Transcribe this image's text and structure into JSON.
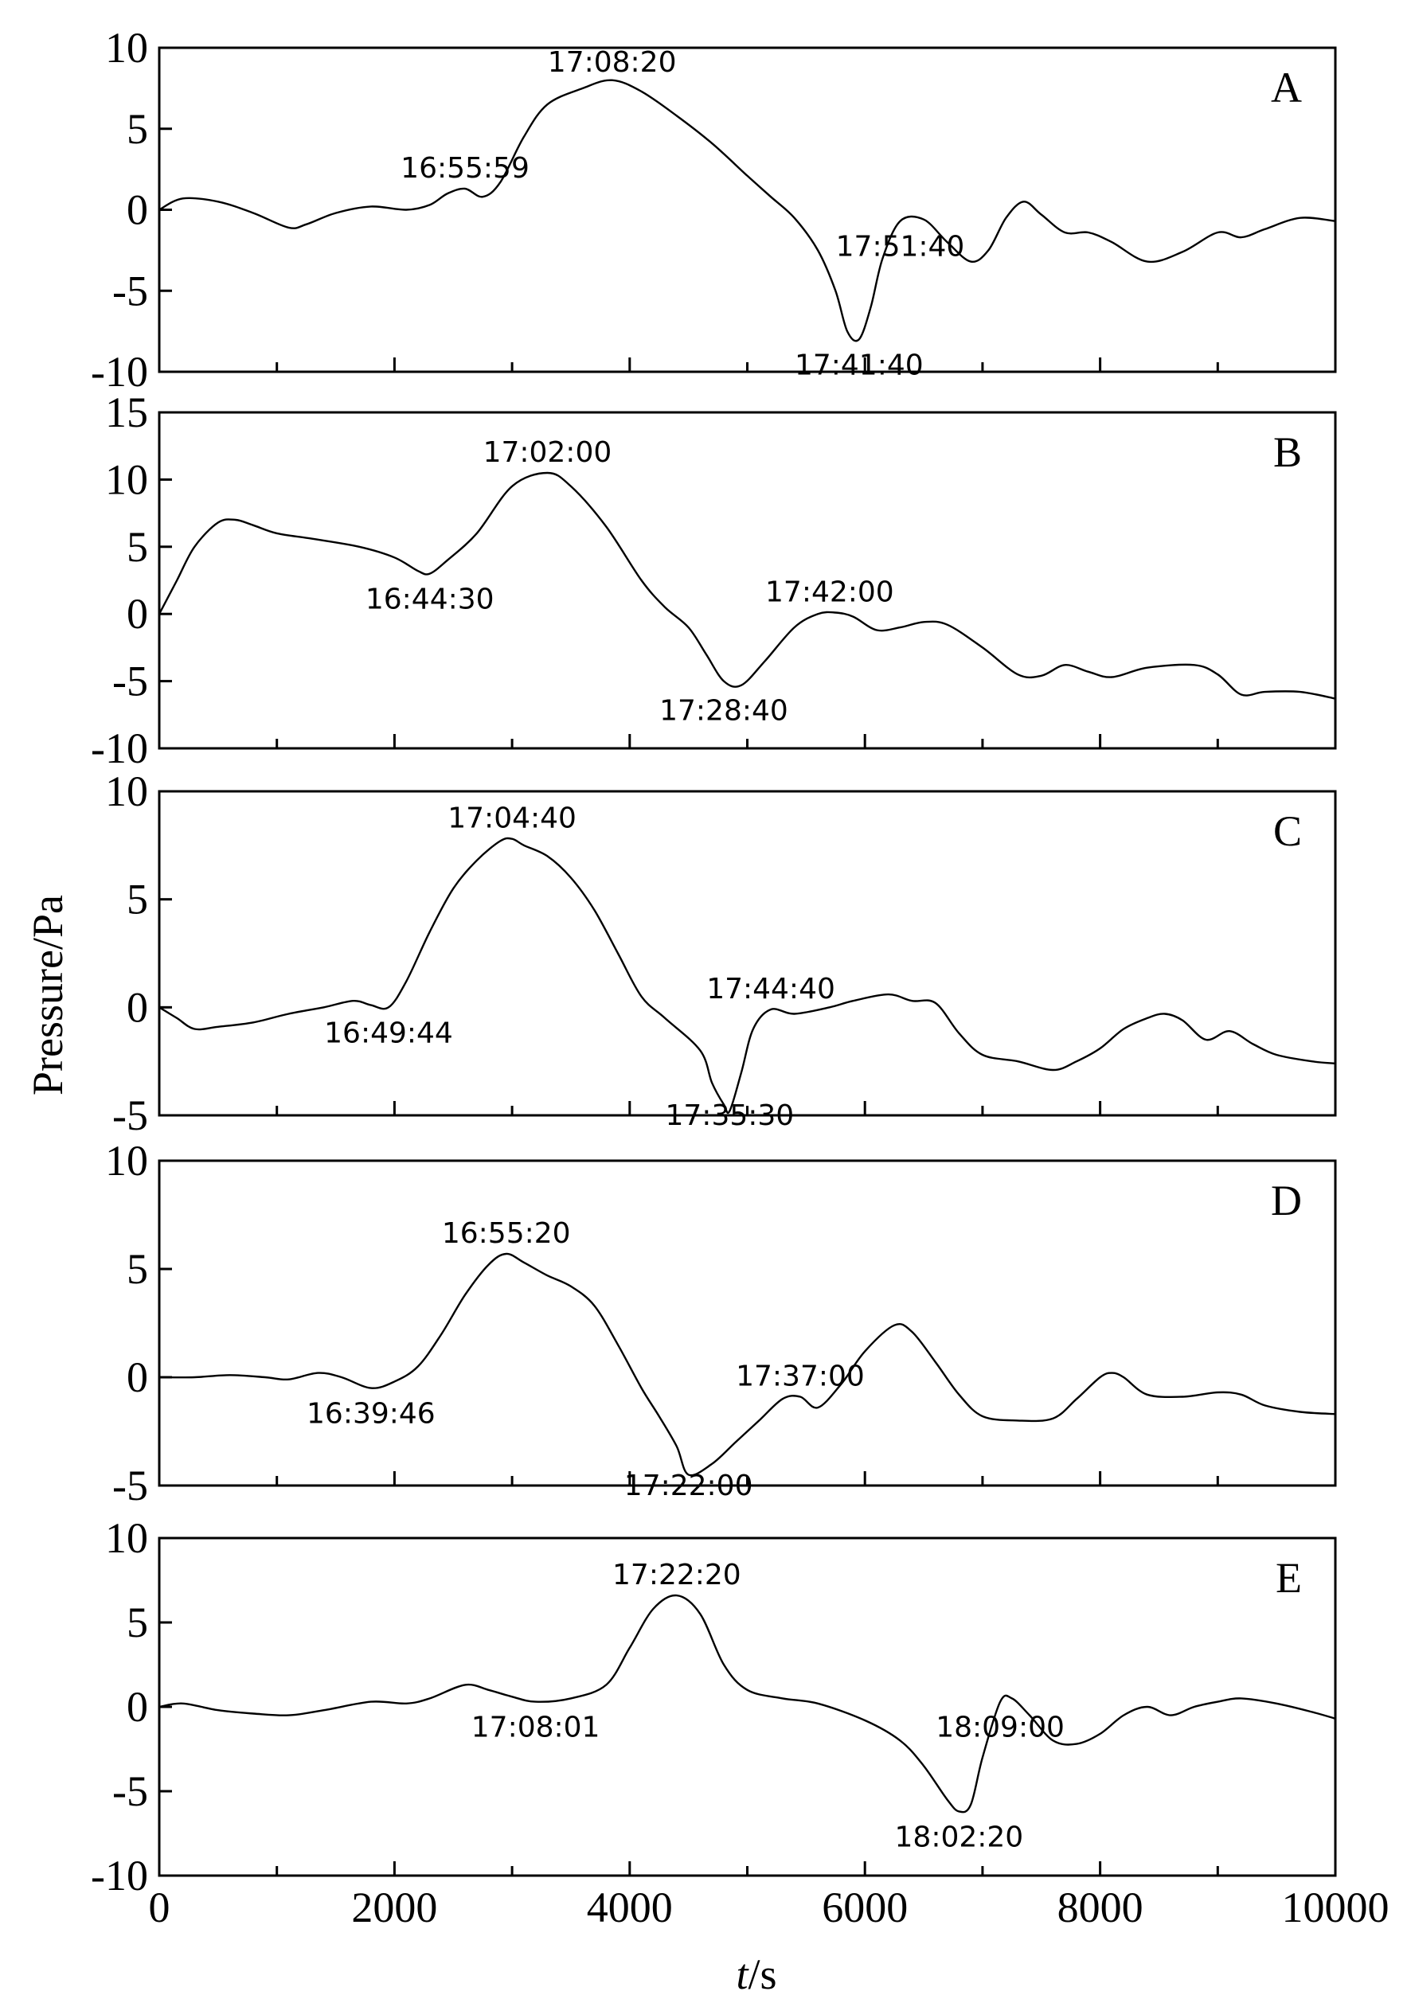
{
  "chart_data": {
    "type": "line",
    "layout": "stacked-panels",
    "xlabel_italic": "t",
    "xlabel_unit": "/s",
    "ylabel": "Pressure/Pa",
    "xlim": [
      0,
      10000
    ],
    "xticks": [
      0,
      2000,
      4000,
      6000,
      8000,
      10000
    ],
    "xtick_labels": [
      "0",
      "2000",
      "4000",
      "6000",
      "8000",
      "10000"
    ],
    "panels": [
      {
        "label": "A",
        "ylim": [
          -10,
          10
        ],
        "yticks": [
          -10,
          -5,
          0,
          5,
          10
        ],
        "ytick_labels": [
          "-10",
          "-5",
          "0",
          "5",
          "10"
        ],
        "x": [
          0,
          200,
          500,
          800,
          1100,
          1250,
          1500,
          1800,
          2100,
          2300,
          2450,
          2600,
          2750,
          2900,
          3100,
          3300,
          3600,
          3850,
          4100,
          4400,
          4700,
          5000,
          5200,
          5400,
          5600,
          5750,
          5850,
          5950,
          6050,
          6150,
          6300,
          6500,
          6700,
          6900,
          7050,
          7200,
          7350,
          7500,
          7700,
          7900,
          8100,
          8400,
          8700,
          9000,
          9200,
          9400,
          9700,
          10000
        ],
        "values": [
          0.0,
          0.7,
          0.5,
          -0.2,
          -1.1,
          -0.9,
          -0.2,
          0.2,
          0.0,
          0.3,
          1.0,
          1.3,
          0.8,
          1.7,
          4.5,
          6.5,
          7.5,
          8.0,
          7.3,
          5.8,
          4.1,
          2.1,
          0.8,
          -0.5,
          -2.5,
          -5.0,
          -7.5,
          -8.0,
          -6.0,
          -3.0,
          -0.7,
          -0.6,
          -2.0,
          -3.2,
          -2.5,
          -0.5,
          0.5,
          -0.3,
          -1.4,
          -1.4,
          -2.0,
          -3.2,
          -2.6,
          -1.4,
          -1.7,
          -1.2,
          -0.5,
          -0.7
        ],
        "annotations": [
          {
            "text": "17:08:20",
            "x": 3850,
            "y": 8.0
          },
          {
            "text": "16:55:59",
            "x": 2600,
            "y": 1.3
          },
          {
            "text": "17:51:40",
            "x": 6300,
            "y": -0.7
          },
          {
            "text": "17:41:40",
            "x": 5950,
            "y": -8.0
          }
        ]
      },
      {
        "label": "B",
        "ylim": [
          -10,
          15
        ],
        "yticks": [
          -10,
          -5,
          0,
          5,
          10,
          15
        ],
        "ytick_labels": [
          "-10",
          "-5",
          "0",
          "5",
          "10",
          "15"
        ],
        "x": [
          0,
          150,
          300,
          500,
          650,
          800,
          1000,
          1300,
          1700,
          2000,
          2200,
          2300,
          2450,
          2700,
          3000,
          3300,
          3500,
          3800,
          4100,
          4300,
          4500,
          4650,
          4800,
          4950,
          5150,
          5400,
          5600,
          5750,
          5900,
          6100,
          6300,
          6500,
          6700,
          7000,
          7300,
          7500,
          7700,
          7900,
          8100,
          8400,
          8800,
          9000,
          9200,
          9400,
          9700,
          10000
        ],
        "values": [
          0.0,
          2.5,
          5.0,
          6.8,
          7.0,
          6.6,
          6.0,
          5.6,
          5.0,
          4.2,
          3.2,
          3.0,
          4.0,
          6.0,
          9.5,
          10.5,
          9.5,
          6.5,
          2.5,
          0.5,
          -1.0,
          -3.0,
          -5.0,
          -5.3,
          -3.5,
          -1.0,
          0.0,
          0.1,
          -0.2,
          -1.2,
          -1.0,
          -0.6,
          -0.8,
          -2.5,
          -4.5,
          -4.6,
          -3.8,
          -4.3,
          -4.7,
          -4.0,
          -3.8,
          -4.5,
          -6.0,
          -5.8,
          -5.8,
          -6.3
        ],
        "annotations": [
          {
            "text": "17:02:00",
            "x": 3300,
            "y": 10.5
          },
          {
            "text": "16:44:30",
            "x": 2300,
            "y": 3.0
          },
          {
            "text": "17:42:00",
            "x": 5700,
            "y": 0.1
          },
          {
            "text": "17:28:40",
            "x": 4800,
            "y": -5.3
          }
        ]
      },
      {
        "label": "C",
        "ylim": [
          -5,
          10
        ],
        "yticks": [
          -5,
          0,
          5,
          10
        ],
        "ytick_labels": [
          "-5",
          "0",
          "5",
          "10"
        ],
        "x": [
          0,
          150,
          300,
          500,
          800,
          1100,
          1400,
          1650,
          1800,
          1950,
          2100,
          2300,
          2500,
          2700,
          2900,
          3000,
          3100,
          3300,
          3500,
          3700,
          3900,
          4100,
          4300,
          4600,
          4700,
          4800,
          4850,
          4950,
          5050,
          5200,
          5400,
          5700,
          5900,
          6200,
          6400,
          6600,
          6800,
          7000,
          7300,
          7600,
          7800,
          8000,
          8200,
          8400,
          8550,
          8700,
          8900,
          9100,
          9300,
          9500,
          9800,
          10000
        ],
        "values": [
          0.0,
          -0.5,
          -1.0,
          -0.9,
          -0.7,
          -0.3,
          0.0,
          0.3,
          0.1,
          0.0,
          1.2,
          3.5,
          5.5,
          6.8,
          7.7,
          7.8,
          7.5,
          7.0,
          6.0,
          4.5,
          2.5,
          0.5,
          -0.5,
          -2.0,
          -3.5,
          -4.5,
          -4.8,
          -3.0,
          -1.0,
          -0.1,
          -0.3,
          0.0,
          0.3,
          0.6,
          0.3,
          0.2,
          -1.2,
          -2.2,
          -2.5,
          -2.9,
          -2.5,
          -1.9,
          -1.0,
          -0.5,
          -0.3,
          -0.6,
          -1.5,
          -1.1,
          -1.7,
          -2.2,
          -2.5,
          -2.6
        ],
        "annotations": [
          {
            "text": "17:04:40",
            "x": 3000,
            "y": 7.8
          },
          {
            "text": "16:49:44",
            "x": 1950,
            "y": 0.0
          },
          {
            "text": "17:44:40",
            "x": 5200,
            "y": -0.1
          },
          {
            "text": "17:35:30",
            "x": 4850,
            "y": -4.8
          }
        ]
      },
      {
        "label": "D",
        "ylim": [
          -5,
          10
        ],
        "yticks": [
          -5,
          0,
          5,
          10
        ],
        "ytick_labels": [
          "-5",
          "0",
          "5",
          "10"
        ],
        "x": [
          0,
          300,
          600,
          900,
          1100,
          1350,
          1550,
          1800,
          2000,
          2200,
          2400,
          2600,
          2800,
          2950,
          3100,
          3300,
          3500,
          3700,
          3900,
          4100,
          4250,
          4400,
          4500,
          4700,
          4900,
          5100,
          5300,
          5450,
          5600,
          5800,
          6000,
          6250,
          6400,
          6600,
          6800,
          7000,
          7300,
          7600,
          7800,
          8000,
          8100,
          8200,
          8400,
          8700,
          9000,
          9200,
          9400,
          9700,
          10000
        ],
        "values": [
          0.0,
          0.0,
          0.1,
          0.0,
          -0.1,
          0.2,
          0.0,
          -0.5,
          -0.2,
          0.5,
          2.0,
          3.8,
          5.2,
          5.7,
          5.3,
          4.7,
          4.2,
          3.3,
          1.5,
          -0.5,
          -1.8,
          -3.2,
          -4.5,
          -4.0,
          -3.0,
          -2.0,
          -1.0,
          -0.9,
          -1.4,
          -0.3,
          1.2,
          2.4,
          2.1,
          0.7,
          -0.8,
          -1.8,
          -2.0,
          -1.9,
          -1.0,
          0.0,
          0.2,
          0.0,
          -0.8,
          -0.9,
          -0.7,
          -0.8,
          -1.3,
          -1.6,
          -1.7
        ],
        "annotations": [
          {
            "text": "16:55:20",
            "x": 2950,
            "y": 5.7
          },
          {
            "text": "16:39:46",
            "x": 1800,
            "y": -0.5
          },
          {
            "text": "17:37:00",
            "x": 5450,
            "y": -0.9
          },
          {
            "text": "17:22:00",
            "x": 4500,
            "y": -4.5
          }
        ]
      },
      {
        "label": "E",
        "ylim": [
          -10,
          10
        ],
        "yticks": [
          -10,
          -5,
          0,
          5,
          10
        ],
        "ytick_labels": [
          "-10",
          "-5",
          "0",
          "5",
          "10"
        ],
        "x": [
          0,
          200,
          500,
          800,
          1100,
          1400,
          1800,
          2100,
          2300,
          2600,
          2800,
          3000,
          3200,
          3500,
          3800,
          4000,
          4200,
          4400,
          4600,
          4800,
          5000,
          5300,
          5600,
          6000,
          6300,
          6500,
          6700,
          6800,
          6900,
          7000,
          7150,
          7250,
          7400,
          7600,
          7800,
          8000,
          8200,
          8400,
          8600,
          8800,
          9000,
          9200,
          9500,
          9800,
          10000
        ],
        "values": [
          0.0,
          0.2,
          -0.2,
          -0.4,
          -0.5,
          -0.2,
          0.3,
          0.2,
          0.5,
          1.3,
          1.0,
          0.6,
          0.3,
          0.5,
          1.3,
          3.5,
          5.8,
          6.6,
          5.5,
          2.5,
          1.0,
          0.5,
          0.2,
          -0.8,
          -2.0,
          -3.5,
          -5.5,
          -6.2,
          -5.8,
          -3.0,
          0.3,
          0.5,
          -0.5,
          -2.0,
          -2.2,
          -1.6,
          -0.5,
          0.0,
          -0.5,
          0.0,
          0.3,
          0.5,
          0.2,
          -0.3,
          -0.7
        ],
        "annotations": [
          {
            "text": "17:22:20",
            "x": 4400,
            "y": 6.6
          },
          {
            "text": "17:08:01",
            "x": 3200,
            "y": 0.3
          },
          {
            "text": "18:09:00",
            "x": 7150,
            "y": 0.3
          },
          {
            "text": "18:02:20",
            "x": 6800,
            "y": -6.2
          }
        ]
      }
    ]
  }
}
